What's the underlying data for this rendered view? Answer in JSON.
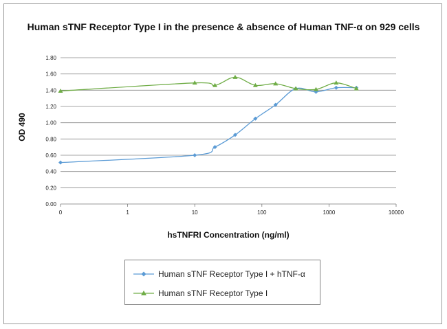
{
  "chart_data": {
    "type": "line",
    "title": "Human sTNF Receptor Type I in the presence & absence of Human TNF-α on 929 cells",
    "xlabel": "hsTNFRI Concentration (ng/ml)",
    "ylabel": "OD 490",
    "xscale": "log",
    "x_ticks": [
      "0",
      "1",
      "10",
      "100",
      "1000",
      "10000"
    ],
    "y_ticks": [
      "0.00",
      "0.20",
      "0.40",
      "0.60",
      "0.80",
      "1.00",
      "1.20",
      "1.40",
      "1.60",
      "1.80"
    ],
    "ylim": [
      0,
      1.8
    ],
    "grid": "horizontal",
    "legend_position": "bottom",
    "series": [
      {
        "name": "Human sTNF Receptor Type I + hTNF-α",
        "color": "#5b9bd5",
        "marker": "diamond",
        "x": [
          0.1,
          10,
          20,
          40,
          80,
          160,
          320,
          640,
          1280,
          2560
        ],
        "y": [
          0.51,
          0.6,
          0.7,
          0.85,
          1.05,
          1.22,
          1.42,
          1.38,
          1.43,
          1.43
        ]
      },
      {
        "name": "Human sTNF Receptor Type I",
        "color": "#70ad47",
        "marker": "triangle",
        "x": [
          0.1,
          10,
          20,
          40,
          80,
          160,
          320,
          640,
          1280,
          2560
        ],
        "y": [
          1.39,
          1.49,
          1.46,
          1.56,
          1.46,
          1.48,
          1.42,
          1.41,
          1.49,
          1.42
        ]
      }
    ]
  }
}
